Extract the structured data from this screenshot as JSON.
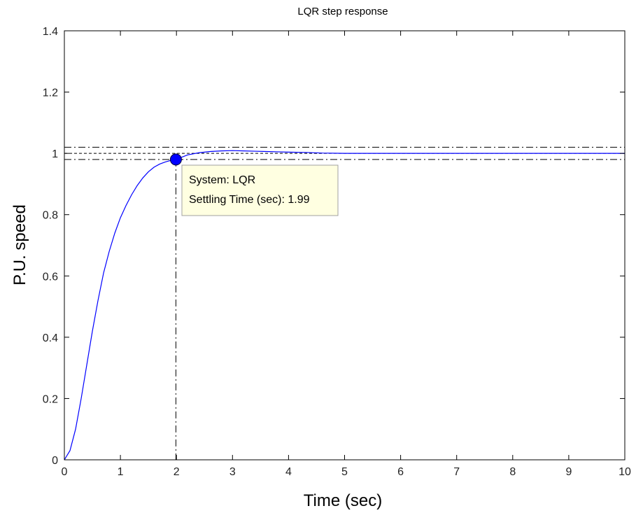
{
  "chart_data": {
    "type": "line",
    "title": "LQR step response",
    "xlabel": "Time (sec)",
    "ylabel": "P.U. speed",
    "xlim": [
      0,
      10
    ],
    "ylim": [
      0,
      1.4
    ],
    "xticks": [
      0,
      1,
      2,
      3,
      4,
      5,
      6,
      7,
      8,
      9,
      10
    ],
    "yticks": [
      0,
      0.2,
      0.4,
      0.6,
      0.8,
      1,
      1.2,
      1.4
    ],
    "xtick_labels": [
      "0",
      "1",
      "2",
      "3",
      "4",
      "5",
      "6",
      "7",
      "8",
      "9",
      "10"
    ],
    "ytick_labels": [
      "0",
      "0.2",
      "0.4",
      "0.6",
      "0.8",
      "1",
      "1.2",
      "1.4"
    ],
    "grid": false,
    "series": [
      {
        "color": "#0000ff",
        "x": [
          0,
          0.1,
          0.2,
          0.3,
          0.4,
          0.5,
          0.6,
          0.7,
          0.8,
          0.9,
          1.0,
          1.1,
          1.2,
          1.3,
          1.4,
          1.5,
          1.6,
          1.7,
          1.8,
          1.9,
          1.99,
          2.1,
          2.2,
          2.4,
          2.6,
          2.8,
          3.0,
          3.2,
          3.4,
          3.6,
          3.8,
          4.0,
          4.3,
          4.6,
          5.0,
          6.0,
          7.0,
          8.0,
          9.0,
          10.0
        ],
        "y": [
          0,
          0.03,
          0.1,
          0.2,
          0.31,
          0.42,
          0.52,
          0.61,
          0.68,
          0.74,
          0.79,
          0.83,
          0.865,
          0.895,
          0.92,
          0.94,
          0.955,
          0.965,
          0.972,
          0.977,
          0.98,
          0.988,
          0.995,
          1.002,
          1.006,
          1.008,
          1.009,
          1.008,
          1.007,
          1.006,
          1.005,
          1.004,
          1.003,
          1.001,
          1.0,
          1.0,
          1.0,
          1.0,
          1.0,
          1.0
        ]
      }
    ],
    "reference_lines": {
      "final_value": 1.0,
      "upper_band": 1.02,
      "lower_band": 0.98,
      "settling_time": 1.99
    },
    "marker": {
      "x": 1.99,
      "y": 0.98,
      "color": "#0000ff"
    },
    "datatip": {
      "line1": "System: LQR",
      "line2": "Settling Time (sec): 1.99",
      "background": "#ffffe1"
    }
  }
}
